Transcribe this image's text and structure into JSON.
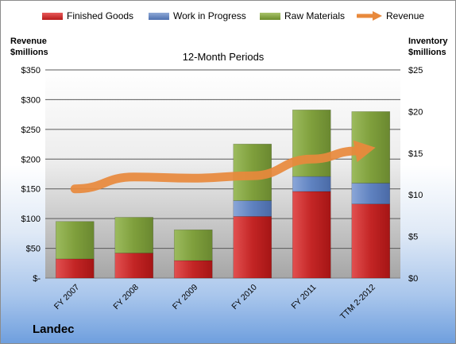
{
  "legend": {
    "finished": "Finished Goods",
    "wip": "Work in Progress",
    "raw": "Raw Materials",
    "revenue": "Revenue"
  },
  "left_title": [
    "Revenue",
    "$millions"
  ],
  "right_title": [
    "Inventory",
    "$millions"
  ],
  "company": "Landec",
  "colors": {
    "finished": "#c02626",
    "wip": "#5b7fbf",
    "raw": "#7a9a38",
    "revenue": "#e8893c"
  },
  "chart_data": {
    "type": "bar",
    "title": "12-Month Periods",
    "categories": [
      "FY 2007",
      "FY 2008",
      "FY 2009",
      "FY 2010",
      "FY 2011",
      "TTM 2-2012"
    ],
    "series": [
      {
        "name": "Finished Goods",
        "axis": "right",
        "values": [
          2.3,
          3.0,
          2.1,
          7.4,
          10.4,
          8.9
        ]
      },
      {
        "name": "Work in Progress",
        "axis": "right",
        "values": [
          0,
          0,
          0,
          1.9,
          1.8,
          2.5
        ]
      },
      {
        "name": "Raw Materials",
        "axis": "right",
        "values": [
          4.5,
          4.3,
          3.7,
          6.8,
          8.0,
          8.6
        ]
      },
      {
        "name": "Revenue",
        "axis": "left",
        "type": "line",
        "values": [
          150,
          170,
          168,
          172,
          200,
          218
        ]
      }
    ],
    "left_axis": {
      "ylim": [
        0,
        350
      ],
      "ticks": [
        "$-",
        "$50",
        "$100",
        "$150",
        "$200",
        "$250",
        "$300",
        "$350"
      ]
    },
    "right_axis": {
      "ylim": [
        0,
        25
      ],
      "ticks": [
        "$0",
        "$5",
        "$10",
        "$15",
        "$20",
        "$25"
      ]
    },
    "stacked": true,
    "grid": true,
    "legend_position": "top"
  }
}
